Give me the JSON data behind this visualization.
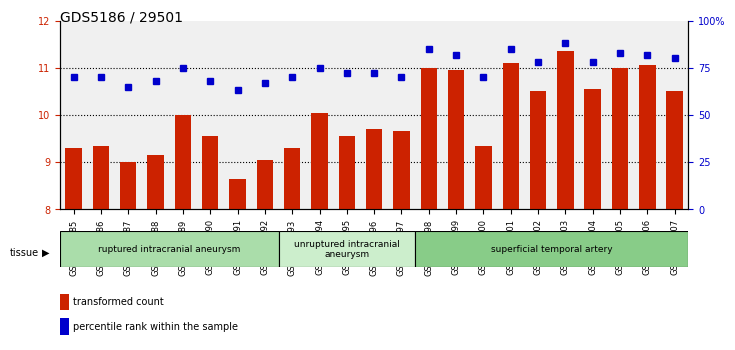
{
  "title": "GDS5186 / 29501",
  "samples": [
    "GSM1306885",
    "GSM1306886",
    "GSM1306887",
    "GSM1306888",
    "GSM1306889",
    "GSM1306890",
    "GSM1306891",
    "GSM1306892",
    "GSM1306893",
    "GSM1306894",
    "GSM1306895",
    "GSM1306896",
    "GSM1306897",
    "GSM1306898",
    "GSM1306899",
    "GSM1306900",
    "GSM1306901",
    "GSM1306902",
    "GSM1306903",
    "GSM1306904",
    "GSM1306905",
    "GSM1306906",
    "GSM1306907"
  ],
  "bar_values": [
    9.3,
    9.35,
    9.0,
    9.15,
    10.0,
    9.55,
    8.65,
    9.05,
    9.3,
    10.05,
    9.55,
    9.7,
    9.65,
    11.0,
    10.95,
    9.35,
    11.1,
    10.5,
    11.35,
    10.55,
    11.0,
    11.05,
    10.5
  ],
  "dot_values_pct": [
    70,
    70,
    65,
    68,
    75,
    68,
    63,
    67,
    70,
    75,
    72,
    72,
    70,
    85,
    82,
    70,
    85,
    78,
    88,
    78,
    83,
    82,
    80
  ],
  "ylim_left": [
    8,
    12
  ],
  "ylim_right": [
    0,
    100
  ],
  "yticks_left": [
    8,
    9,
    10,
    11,
    12
  ],
  "yticks_right": [
    0,
    25,
    50,
    75,
    100
  ],
  "bar_color": "#cc2200",
  "dot_color": "#0000cc",
  "bg_color": "#ffffff",
  "plot_bg": "#ffffff",
  "grid_color": "#000000",
  "groups": [
    {
      "label": "ruptured intracranial aneurysm",
      "start": 0,
      "end": 8,
      "color": "#aaddaa"
    },
    {
      "label": "unruptured intracranial\naneurysm",
      "start": 8,
      "end": 13,
      "color": "#cceecc"
    },
    {
      "label": "superficial temporal artery",
      "start": 13,
      "end": 23,
      "color": "#88cc88"
    }
  ],
  "tissue_label": "tissue",
  "legend_bar_label": "transformed count",
  "legend_dot_label": "percentile rank within the sample",
  "title_fontsize": 10,
  "axis_fontsize": 8,
  "tick_fontsize": 7
}
